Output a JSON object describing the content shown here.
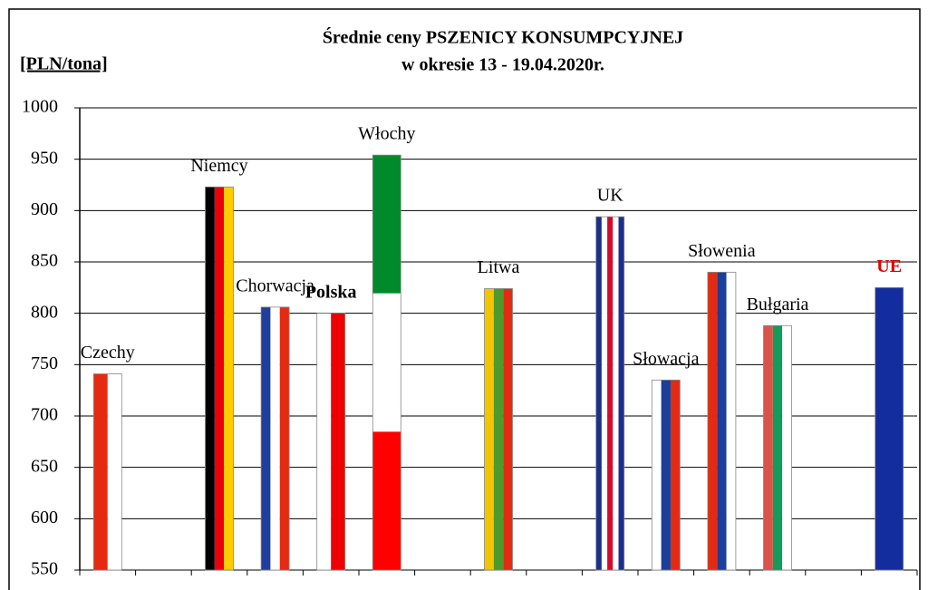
{
  "chart_data": {
    "type": "bar",
    "title": "Średnie ceny PSZENICY  KONSUMPCYJNEJ",
    "subtitle": "w okresie 13 - 19.04.2020r.",
    "y_label": "[PLN/tona]",
    "categories": [
      "Czechy",
      null,
      "Niemcy",
      "Chorwacja",
      "Polska",
      "Włochy",
      null,
      "Litwa",
      null,
      "UK",
      "Słowacja",
      "Słowenia",
      "Bułgaria",
      null,
      "UE"
    ],
    "values": [
      741,
      null,
      923,
      806,
      800,
      954,
      null,
      824,
      null,
      894,
      735,
      840,
      788,
      null,
      825
    ],
    "flags": [
      {
        "dir": "v",
        "colors": [
          "#e52a12",
          "#ffffff"
        ]
      },
      null,
      {
        "dir": "v",
        "colors": [
          "#000000",
          "#e8000a",
          "#ffcc00"
        ]
      },
      {
        "dir": "v",
        "colors": [
          "#1f3f9b",
          "#ffffff",
          "#e52a12"
        ]
      },
      {
        "dir": "v",
        "colors": [
          "#ffffff",
          "#ee0000"
        ]
      },
      {
        "dir": "h",
        "colors": [
          "#008a2b",
          "#ffffff",
          "#ff0000"
        ]
      },
      null,
      {
        "dir": "v",
        "colors": [
          "#f4c400",
          "#4f9a2c",
          "#e52a12"
        ]
      },
      null,
      {
        "dir": "v",
        "colors": [
          "#1c2f8c",
          "#ffffff",
          "#d60a2d",
          "#ffffff",
          "#1c2f8c"
        ]
      },
      {
        "dir": "v",
        "colors": [
          "#ffffff",
          "#1a3f9b",
          "#e52a12"
        ]
      },
      {
        "dir": "v",
        "colors": [
          "#e52a12",
          "#1a3f9b",
          "#ffffff"
        ]
      },
      {
        "dir": "v",
        "colors": [
          "#d9534a",
          "#129b5a",
          "#ffffff"
        ]
      },
      null,
      {
        "dir": "v",
        "colors": [
          "#142d9e"
        ]
      }
    ],
    "ylim": [
      550,
      1000
    ],
    "yticks": [
      550,
      600,
      650,
      700,
      750,
      800,
      850,
      900,
      950,
      1000
    ],
    "grid": true
  }
}
